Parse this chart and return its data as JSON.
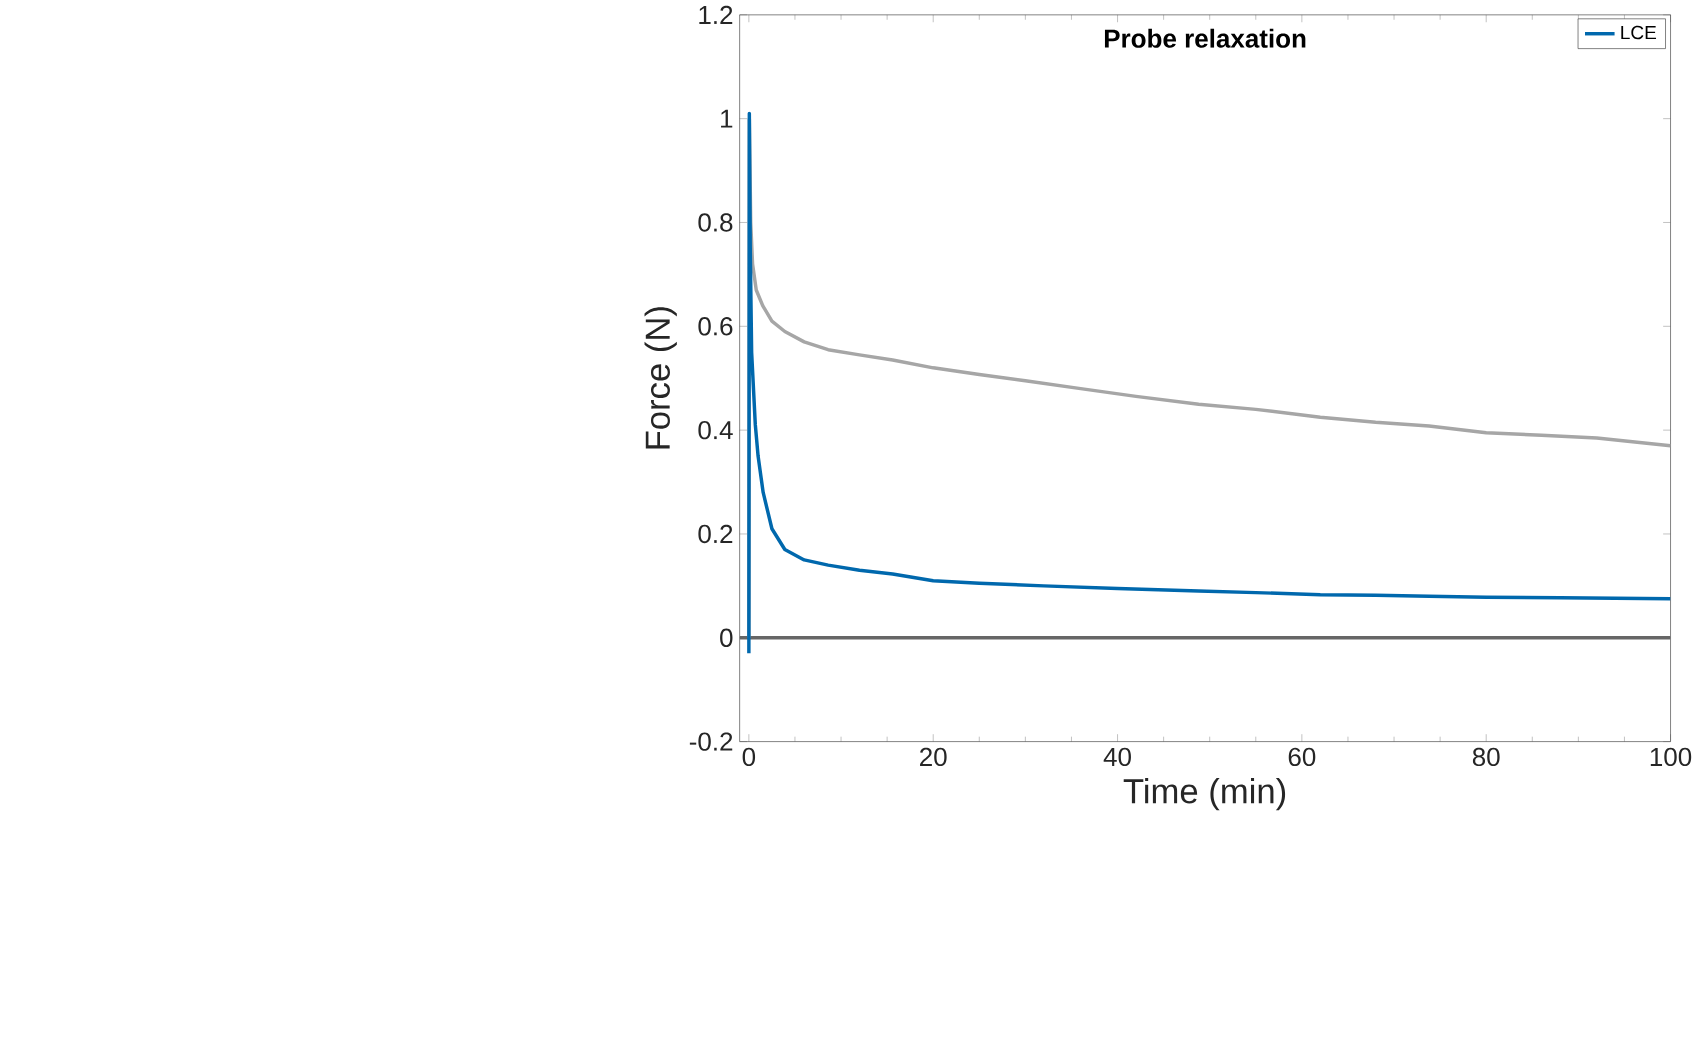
{
  "chart_data": {
    "type": "line",
    "title": "Probe relaxation",
    "xlabel": "Time (min)",
    "ylabel": "Force (N)",
    "xlim": [
      -1,
      100
    ],
    "ylim": [
      -0.2,
      1.2
    ],
    "xticks": [
      0,
      20,
      40,
      60,
      80,
      100
    ],
    "yticks": [
      -0.2,
      0,
      0.2,
      0.4,
      0.6,
      0.8,
      1,
      1.2
    ],
    "grid": false,
    "legend": "top right",
    "marker": "none",
    "line_style": "solid",
    "ref_lines": [
      {
        "axis": "y",
        "value": 0,
        "color": "#666666"
      }
    ],
    "series": [
      {
        "color": "#a6a6a6",
        "x": [
          0,
          0.05,
          0.2,
          0.4,
          0.8,
          1.5,
          2.5,
          3.9,
          6,
          8.6,
          12,
          15.6,
          20,
          25,
          30,
          36,
          42,
          48.8,
          55,
          62,
          68,
          73.8,
          80,
          86,
          92,
          100
        ],
        "values": [
          0,
          1.0,
          0.8,
          0.72,
          0.67,
          0.64,
          0.61,
          0.59,
          0.57,
          0.555,
          0.545,
          0.535,
          0.52,
          0.507,
          0.495,
          0.48,
          0.465,
          0.45,
          0.44,
          0.425,
          0.415,
          0.408,
          0.395,
          0.39,
          0.385,
          0.37
        ]
      },
      {
        "name": "LCE",
        "color": "#0068ad",
        "x": [
          0,
          0.05,
          0.15,
          0.3,
          0.7,
          1.0,
          1.55,
          2.5,
          3.9,
          6,
          8.6,
          12,
          15.6,
          20,
          25,
          32,
          40,
          48.8,
          55,
          62,
          68,
          73.8,
          80,
          88,
          94,
          100
        ],
        "values": [
          -0.03,
          1.01,
          0.75,
          0.55,
          0.41,
          0.35,
          0.28,
          0.21,
          0.17,
          0.15,
          0.14,
          0.13,
          0.123,
          0.11,
          0.105,
          0.1,
          0.095,
          0.09,
          0.087,
          0.083,
          0.082,
          0.08,
          0.078,
          0.077,
          0.076,
          0.075
        ]
      }
    ]
  }
}
